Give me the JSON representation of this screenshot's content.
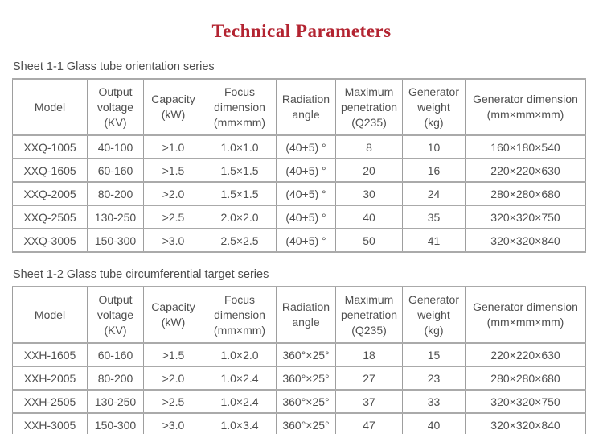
{
  "page": {
    "title": "Technical Parameters",
    "title_color": "#b32431",
    "text_color": "#4f4f4f",
    "border_color": "#9e9e9e"
  },
  "tables": [
    {
      "caption": "Sheet 1-1 Glass tube orientation series",
      "headers": [
        "Model",
        "Output\nvoltage\n(KV)",
        "Capacity\n(kW)",
        "Focus\ndimension\n(mm×mm)",
        "Radiation\nangle",
        "Maximum\npenetration\n(Q235)",
        "Generator\nweight\n(kg)",
        "Generator dimension\n(mm×mm×mm)"
      ],
      "rows": [
        [
          "XXQ-1005",
          "40-100",
          ">1.0",
          "1.0×1.0",
          "(40+5) °",
          "8",
          "10",
          "160×180×540"
        ],
        [
          "XXQ-1605",
          "60-160",
          ">1.5",
          "1.5×1.5",
          "(40+5) °",
          "20",
          "16",
          "220×220×630"
        ],
        [
          "XXQ-2005",
          "80-200",
          ">2.0",
          "1.5×1.5",
          "(40+5) °",
          "30",
          "24",
          "280×280×680"
        ],
        [
          "XXQ-2505",
          "130-250",
          ">2.5",
          "2.0×2.0",
          "(40+5) °",
          "40",
          "35",
          "320×320×750"
        ],
        [
          "XXQ-3005",
          "150-300",
          ">3.0",
          "2.5×2.5",
          "(40+5) °",
          "50",
          "41",
          "320×320×840"
        ]
      ]
    },
    {
      "caption": "Sheet 1-2 Glass tube circumferential target series",
      "headers": [
        "Model",
        "Output\nvoltage\n(KV)",
        "Capacity\n(kW)",
        "Focus\ndimension\n(mm×mm)",
        "Radiation\nangle",
        "Maximum\npenetration\n(Q235)",
        "Generator\nweight\n(kg)",
        "Generator dimension\n(mm×mm×mm)"
      ],
      "rows": [
        [
          "XXH-1605",
          "60-160",
          ">1.5",
          "1.0×2.0",
          "360°×25°",
          "18",
          "15",
          "220×220×630"
        ],
        [
          "XXH-2005",
          "80-200",
          ">2.0",
          "1.0×2.4",
          "360°×25°",
          "27",
          "23",
          "280×280×680"
        ],
        [
          "XXH-2505",
          "130-250",
          ">2.5",
          "1.0×2.4",
          "360°×25°",
          "37",
          "33",
          "320×320×750"
        ],
        [
          "XXH-3005",
          "150-300",
          ">3.0",
          "1.0×3.4",
          "360°×25°",
          "47",
          "40",
          "320×320×840"
        ]
      ]
    }
  ]
}
